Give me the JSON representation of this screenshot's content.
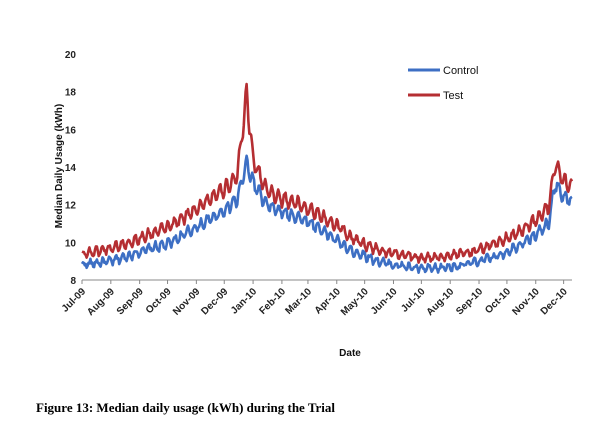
{
  "caption": {
    "label": "Figure 13:",
    "text": "Median daily usage (kWh) during the Trial"
  },
  "chart_data": {
    "type": "line",
    "title": "",
    "xlabel": "Date",
    "ylabel": "Median Daily Usage (kWh)",
    "ylim": [
      8,
      20
    ],
    "yticks": [
      8,
      10,
      12,
      14,
      16,
      18,
      20
    ],
    "xlim": [
      "2009-07-01",
      "2010-12-10"
    ],
    "xtick_labels": [
      "Jul-09",
      "Aug-09",
      "Sep-09",
      "Oct-09",
      "Nov-09",
      "Dec-09",
      "Jan-10",
      "Feb-10",
      "Mar-10",
      "Apr-10",
      "May-10",
      "Jun-10",
      "Jul-10",
      "Aug-10",
      "Sep-10",
      "Oct-10",
      "Nov-10",
      "Dec-10"
    ],
    "xtick_dates": [
      "2009-07-01",
      "2009-08-01",
      "2009-09-01",
      "2009-10-01",
      "2009-11-01",
      "2009-12-01",
      "2010-01-01",
      "2010-02-01",
      "2010-03-01",
      "2010-04-01",
      "2010-05-01",
      "2010-06-01",
      "2010-07-01",
      "2010-08-01",
      "2010-09-01",
      "2010-10-01",
      "2010-11-01",
      "2010-12-01"
    ],
    "grid": false,
    "legend_position": "top-right",
    "series": [
      {
        "name": "Control",
        "color": "#3d6fc4",
        "x": [
          "2009-07-01",
          "2009-07-15",
          "2009-08-01",
          "2009-08-15",
          "2009-09-01",
          "2009-09-15",
          "2009-10-01",
          "2009-10-15",
          "2009-11-01",
          "2009-11-15",
          "2009-12-01",
          "2009-12-15",
          "2009-12-25",
          "2010-01-01",
          "2010-01-15",
          "2010-02-01",
          "2010-02-15",
          "2010-03-01",
          "2010-03-15",
          "2010-04-01",
          "2010-04-15",
          "2010-05-01",
          "2010-05-15",
          "2010-06-01",
          "2010-06-15",
          "2010-07-01",
          "2010-07-15",
          "2010-08-01",
          "2010-08-15",
          "2010-09-01",
          "2010-09-15",
          "2010-10-01",
          "2010-10-15",
          "2010-11-01",
          "2010-11-15",
          "2010-11-22",
          "2010-12-01",
          "2010-12-10"
        ],
        "y": [
          8.8,
          8.9,
          9.0,
          9.2,
          9.5,
          9.7,
          9.9,
          10.3,
          10.8,
          11.2,
          11.7,
          12.3,
          14.2,
          13.2,
          12.0,
          11.6,
          11.4,
          11.1,
          10.7,
          10.1,
          9.6,
          9.3,
          9.0,
          8.8,
          8.7,
          8.6,
          8.6,
          8.7,
          8.8,
          9.0,
          9.2,
          9.5,
          9.9,
          10.4,
          11.0,
          13.2,
          12.4,
          12.2
        ]
      },
      {
        "name": "Test",
        "color": "#b52e32",
        "x": [
          "2009-07-01",
          "2009-07-15",
          "2009-08-01",
          "2009-08-15",
          "2009-09-01",
          "2009-09-15",
          "2009-10-01",
          "2009-10-15",
          "2009-11-01",
          "2009-11-15",
          "2009-12-01",
          "2009-12-15",
          "2009-12-25",
          "2010-01-01",
          "2010-01-15",
          "2010-02-01",
          "2010-02-15",
          "2010-03-01",
          "2010-03-15",
          "2010-04-01",
          "2010-04-15",
          "2010-05-01",
          "2010-05-15",
          "2010-06-01",
          "2010-06-15",
          "2010-07-01",
          "2010-07-15",
          "2010-08-01",
          "2010-08-15",
          "2010-09-01",
          "2010-09-15",
          "2010-10-01",
          "2010-10-15",
          "2010-11-01",
          "2010-11-15",
          "2010-11-22",
          "2010-12-01",
          "2010-12-10"
        ],
        "y": [
          9.4,
          9.5,
          9.7,
          9.9,
          10.2,
          10.5,
          10.8,
          11.2,
          11.8,
          12.3,
          12.8,
          13.5,
          17.9,
          14.4,
          12.8,
          12.3,
          12.1,
          11.8,
          11.4,
          10.9,
          10.3,
          9.9,
          9.6,
          9.4,
          9.3,
          9.2,
          9.2,
          9.3,
          9.4,
          9.6,
          9.9,
          10.2,
          10.6,
          11.2,
          11.9,
          14.2,
          13.3,
          12.9
        ]
      }
    ]
  }
}
